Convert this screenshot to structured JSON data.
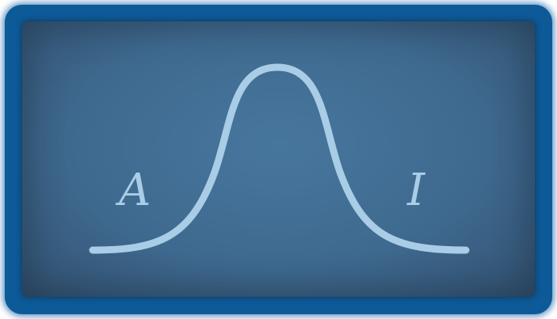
{
  "logo": {
    "left_letter": "A",
    "right_letter": "I",
    "icon": "bell-curve-icon"
  },
  "colors": {
    "frame_glow": "#0d5a98",
    "panel": "#3f6a90",
    "curve": "#a9cde6",
    "letters": "#a9cde6"
  }
}
